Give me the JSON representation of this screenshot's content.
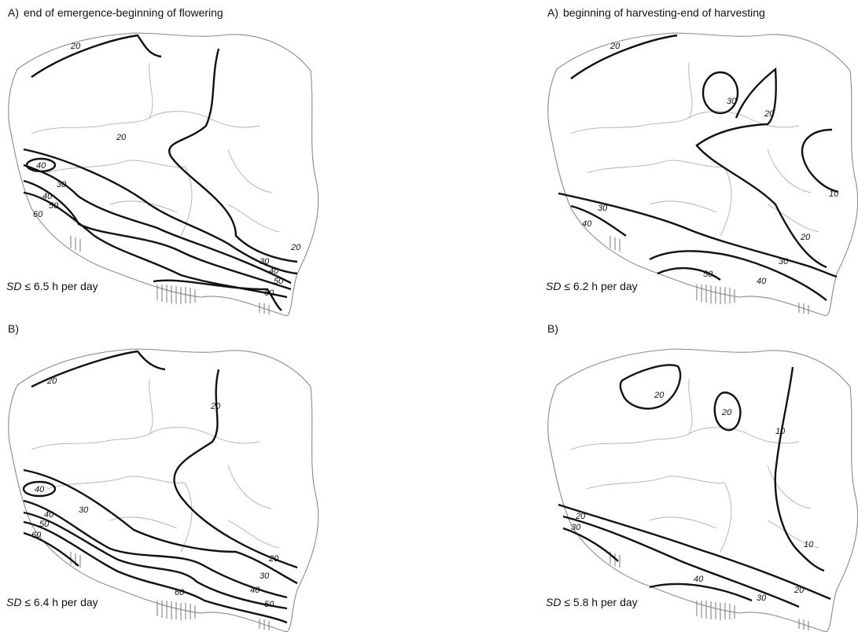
{
  "panels": [
    {
      "letter": "A)",
      "title": "end of emergence-beginning of flowering",
      "threshold": {
        "symbol": "SD",
        "operator": "≤",
        "value": "6.5",
        "unit": "h per day"
      },
      "isolines": [
        "20",
        "20",
        "20",
        "30",
        "30",
        "40",
        "40",
        "40",
        "50",
        "50",
        "60",
        "60"
      ]
    },
    {
      "letter": "A)",
      "title": "beginning of harvesting-end of harvesting",
      "threshold": {
        "symbol": "SD",
        "operator": "≤",
        "value": "6.2",
        "unit": "h per day"
      },
      "isolines": [
        "20",
        "30",
        "20",
        "10",
        "30",
        "40",
        "20",
        "30",
        "50",
        "40"
      ]
    },
    {
      "letter": "B)",
      "title": "",
      "threshold": {
        "symbol": "SD",
        "operator": "≤",
        "value": "6.4",
        "unit": "h per day"
      },
      "isolines": [
        "20",
        "20",
        "40",
        "30",
        "40",
        "50",
        "60",
        "20",
        "30",
        "40",
        "50",
        "60"
      ]
    },
    {
      "letter": "B)",
      "title": "",
      "threshold": {
        "symbol": "SD",
        "operator": "≤",
        "value": "5.8",
        "unit": "h per day"
      },
      "isolines": [
        "20",
        "20",
        "10",
        "20",
        "30",
        "10",
        "20",
        "40",
        "30"
      ]
    }
  ]
}
